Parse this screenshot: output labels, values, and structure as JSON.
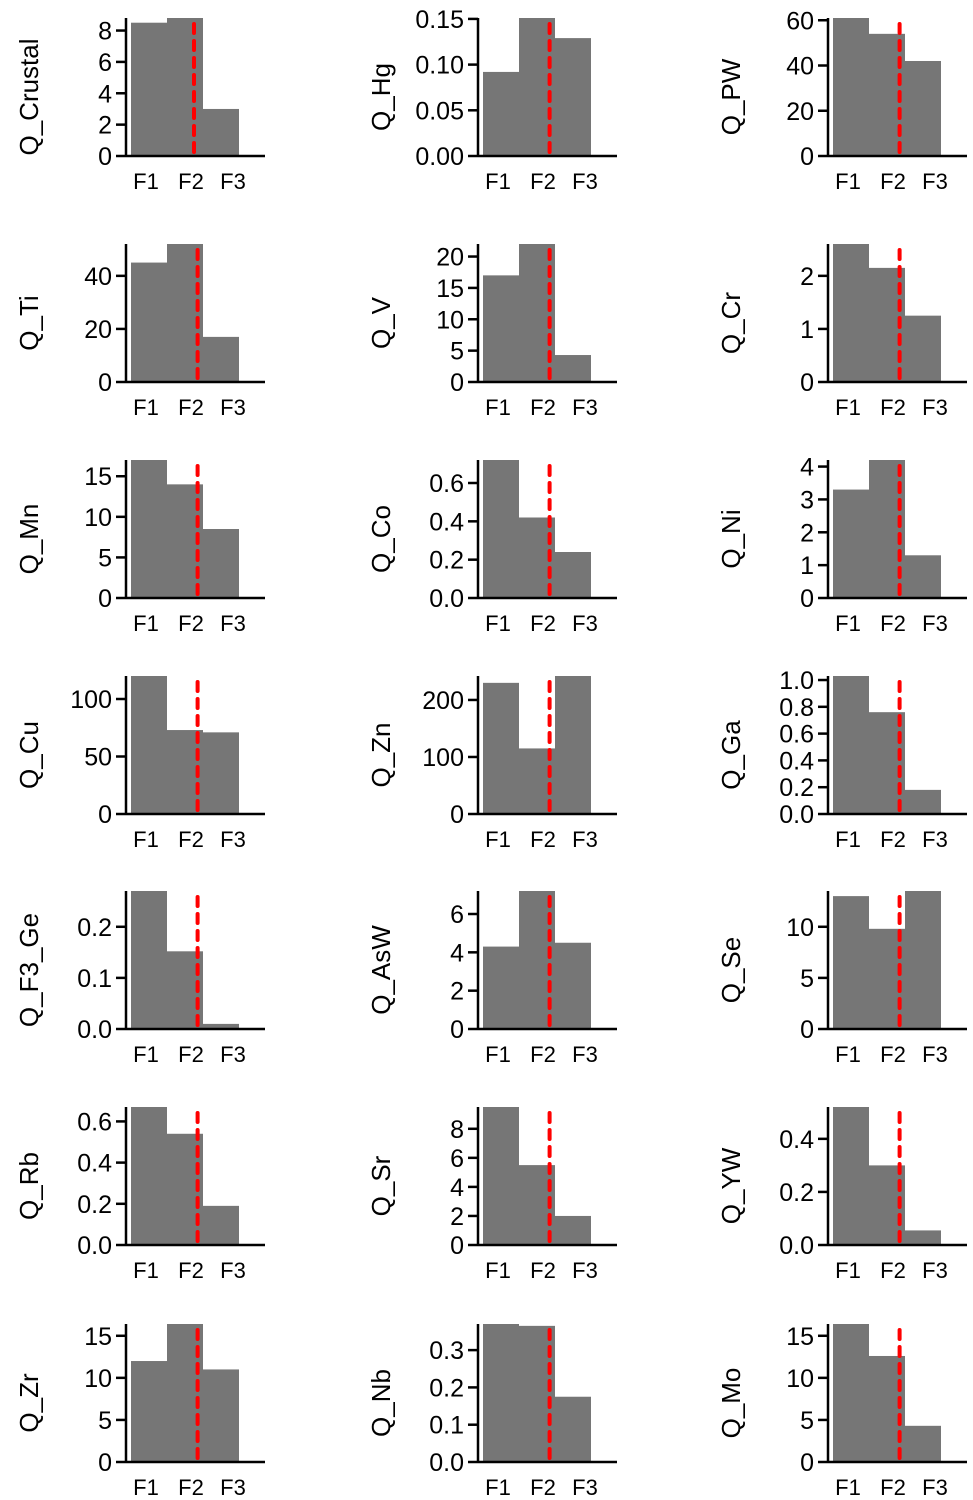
{
  "chart_data": [
    {
      "type": "bar",
      "ylabel": "Q_Crustal",
      "categories": [
        "F1",
        "F2",
        "F3"
      ],
      "values": [
        8.5,
        8.8,
        3.0
      ],
      "yticks": [
        "0",
        "2",
        "4",
        "6",
        "8"
      ],
      "ytick_values": [
        0,
        2,
        4,
        6,
        8
      ],
      "ylim": [
        0,
        8.8
      ],
      "reference_line_x": 2.25,
      "bar_color": "#767676",
      "line_color": "#ff0000"
    },
    {
      "type": "bar",
      "ylabel": "Q_Hg",
      "categories": [
        "F1",
        "F2",
        "F3"
      ],
      "values": [
        0.092,
        0.151,
        0.129
      ],
      "yticks": [
        "0.00",
        "0.05",
        "0.10",
        "0.15"
      ],
      "ytick_values": [
        0,
        0.05,
        0.1,
        0.15
      ],
      "ylim": [
        0,
        0.151
      ],
      "reference_line_x": 2.35,
      "bar_color": "#767676",
      "line_color": "#ff0000"
    },
    {
      "type": "bar",
      "ylabel": "Q_PW",
      "categories": [
        "F1",
        "F2",
        "F3"
      ],
      "values": [
        61,
        54,
        42
      ],
      "yticks": [
        "0",
        "20",
        "40",
        "60"
      ],
      "ytick_values": [
        0,
        20,
        40,
        60
      ],
      "ylim": [
        0,
        61
      ],
      "reference_line_x": 2.35,
      "bar_color": "#767676",
      "line_color": "#ff0000"
    },
    {
      "type": "bar",
      "ylabel": "Q_Ti",
      "categories": [
        "F1",
        "F2",
        "F3"
      ],
      "values": [
        45,
        52,
        17
      ],
      "yticks": [
        "0",
        "20",
        "40"
      ],
      "ytick_values": [
        0,
        20,
        40
      ],
      "ylim": [
        0,
        52
      ],
      "reference_line_x": 2.35,
      "bar_color": "#767676",
      "line_color": "#ff0000"
    },
    {
      "type": "bar",
      "ylabel": "Q_V",
      "categories": [
        "F1",
        "F2",
        "F3"
      ],
      "values": [
        17,
        22,
        4.3
      ],
      "yticks": [
        "0",
        "5",
        "10",
        "15",
        "20"
      ],
      "ytick_values": [
        0,
        5,
        10,
        15,
        20
      ],
      "ylim": [
        0,
        22
      ],
      "reference_line_x": 2.35,
      "bar_color": "#767676",
      "line_color": "#ff0000"
    },
    {
      "type": "bar",
      "ylabel": "Q_Cr",
      "categories": [
        "F1",
        "F2",
        "F3"
      ],
      "values": [
        2.6,
        2.15,
        1.25
      ],
      "yticks": [
        "0",
        "1",
        "2"
      ],
      "ytick_values": [
        0,
        1,
        2
      ],
      "ylim": [
        0,
        2.6
      ],
      "reference_line_x": 2.35,
      "bar_color": "#767676",
      "line_color": "#ff0000"
    },
    {
      "type": "bar",
      "ylabel": "Q_Mn",
      "categories": [
        "F1",
        "F2",
        "F3"
      ],
      "values": [
        17,
        14,
        8.5
      ],
      "yticks": [
        "0",
        "5",
        "10",
        "15"
      ],
      "ytick_values": [
        0,
        5,
        10,
        15
      ],
      "ylim": [
        0,
        17
      ],
      "reference_line_x": 2.35,
      "bar_color": "#767676",
      "line_color": "#ff0000"
    },
    {
      "type": "bar",
      "ylabel": "Q_Co",
      "categories": [
        "F1",
        "F2",
        "F3"
      ],
      "values": [
        0.72,
        0.42,
        0.24
      ],
      "yticks": [
        "0.0",
        "0.2",
        "0.4",
        "0.6"
      ],
      "ytick_values": [
        0,
        0.2,
        0.4,
        0.6
      ],
      "ylim": [
        0,
        0.72
      ],
      "reference_line_x": 2.35,
      "bar_color": "#767676",
      "line_color": "#ff0000"
    },
    {
      "type": "bar",
      "ylabel": "Q_Ni",
      "categories": [
        "F1",
        "F2",
        "F3"
      ],
      "values": [
        3.3,
        4.2,
        1.3
      ],
      "yticks": [
        "0",
        "1",
        "2",
        "3",
        "4"
      ],
      "ytick_values": [
        0,
        1,
        2,
        3,
        4
      ],
      "ylim": [
        0,
        4.2
      ],
      "reference_line_x": 2.35,
      "bar_color": "#767676",
      "line_color": "#ff0000"
    },
    {
      "type": "bar",
      "ylabel": "Q_Cu",
      "categories": [
        "F1",
        "F2",
        "F3"
      ],
      "values": [
        120,
        73,
        71
      ],
      "yticks": [
        "0",
        "50",
        "100"
      ],
      "ytick_values": [
        0,
        50,
        100
      ],
      "ylim": [
        0,
        120
      ],
      "reference_line_x": 2.35,
      "bar_color": "#767676",
      "line_color": "#ff0000"
    },
    {
      "type": "bar",
      "ylabel": "Q_Zn",
      "categories": [
        "F1",
        "F2",
        "F3"
      ],
      "values": [
        230,
        115,
        242
      ],
      "yticks": [
        "0",
        "100",
        "200"
      ],
      "ytick_values": [
        0,
        100,
        200
      ],
      "ylim": [
        0,
        242
      ],
      "reference_line_x": 2.35,
      "bar_color": "#767676",
      "line_color": "#ff0000"
    },
    {
      "type": "bar",
      "ylabel": "Q_Ga",
      "categories": [
        "F1",
        "F2",
        "F3"
      ],
      "values": [
        1.03,
        0.76,
        0.18
      ],
      "yticks": [
        "0.0",
        "0.2",
        "0.4",
        "0.6",
        "0.8",
        "1.0"
      ],
      "ytick_values": [
        0,
        0.2,
        0.4,
        0.6,
        0.8,
        1.0
      ],
      "ylim": [
        0,
        1.03
      ],
      "reference_line_x": 2.35,
      "bar_color": "#767676",
      "line_color": "#ff0000"
    },
    {
      "type": "bar",
      "ylabel": "Q_F3_Ge",
      "categories": [
        "F1",
        "F2",
        "F3"
      ],
      "values": [
        0.27,
        0.152,
        0.01
      ],
      "yticks": [
        "0.0",
        "0.1",
        "0.2"
      ],
      "ytick_values": [
        0,
        0.1,
        0.2
      ],
      "ylim": [
        0,
        0.27
      ],
      "reference_line_x": 2.35,
      "bar_color": "#767676",
      "line_color": "#ff0000"
    },
    {
      "type": "bar",
      "ylabel": "Q_AsW",
      "categories": [
        "F1",
        "F2",
        "F3"
      ],
      "values": [
        4.3,
        7.2,
        4.5
      ],
      "yticks": [
        "0",
        "2",
        "4",
        "6"
      ],
      "ytick_values": [
        0,
        2,
        4,
        6
      ],
      "ylim": [
        0,
        7.2
      ],
      "reference_line_x": 2.35,
      "bar_color": "#767676",
      "line_color": "#ff0000"
    },
    {
      "type": "bar",
      "ylabel": "Q_Se",
      "categories": [
        "F1",
        "F2",
        "F3"
      ],
      "values": [
        13,
        9.8,
        13.5
      ],
      "yticks": [
        "0",
        "5",
        "10"
      ],
      "ytick_values": [
        0,
        5,
        10
      ],
      "ylim": [
        0,
        13.5
      ],
      "reference_line_x": 2.35,
      "bar_color": "#767676",
      "line_color": "#ff0000"
    },
    {
      "type": "bar",
      "ylabel": "Q_Rb",
      "categories": [
        "F1",
        "F2",
        "F3"
      ],
      "values": [
        0.67,
        0.54,
        0.19
      ],
      "yticks": [
        "0.0",
        "0.2",
        "0.4",
        "0.6"
      ],
      "ytick_values": [
        0,
        0.2,
        0.4,
        0.6
      ],
      "ylim": [
        0,
        0.67
      ],
      "reference_line_x": 2.35,
      "bar_color": "#767676",
      "line_color": "#ff0000"
    },
    {
      "type": "bar",
      "ylabel": "Q_Sr",
      "categories": [
        "F1",
        "F2",
        "F3"
      ],
      "values": [
        9.5,
        5.5,
        2.0
      ],
      "yticks": [
        "0",
        "2",
        "4",
        "6",
        "8"
      ],
      "ytick_values": [
        0,
        2,
        4,
        6,
        8
      ],
      "ylim": [
        0,
        9.5
      ],
      "reference_line_x": 2.35,
      "bar_color": "#767676",
      "line_color": "#ff0000"
    },
    {
      "type": "bar",
      "ylabel": "Q_YW",
      "categories": [
        "F1",
        "F2",
        "F3"
      ],
      "values": [
        0.52,
        0.3,
        0.055
      ],
      "yticks": [
        "0.0",
        "0.2",
        "0.4"
      ],
      "ytick_values": [
        0,
        0.2,
        0.4
      ],
      "ylim": [
        0,
        0.52
      ],
      "reference_line_x": 2.35,
      "bar_color": "#767676",
      "line_color": "#ff0000"
    },
    {
      "type": "bar",
      "ylabel": "Q_Zr",
      "categories": [
        "F1",
        "F2",
        "F3"
      ],
      "values": [
        12,
        16.4,
        11
      ],
      "yticks": [
        "0",
        "5",
        "10",
        "15"
      ],
      "ytick_values": [
        0,
        5,
        10,
        15
      ],
      "ylim": [
        0,
        16.4
      ],
      "reference_line_x": 2.35,
      "bar_color": "#767676",
      "line_color": "#ff0000"
    },
    {
      "type": "bar",
      "ylabel": "Q_Nb",
      "categories": [
        "F1",
        "F2",
        "F3"
      ],
      "values": [
        0.37,
        0.365,
        0.175
      ],
      "yticks": [
        "0.0",
        "0.1",
        "0.2",
        "0.3"
      ],
      "ytick_values": [
        0,
        0.1,
        0.2,
        0.3
      ],
      "ylim": [
        0,
        0.37
      ],
      "reference_line_x": 2.35,
      "bar_color": "#767676",
      "line_color": "#ff0000"
    },
    {
      "type": "bar",
      "ylabel": "Q_Mo",
      "categories": [
        "F1",
        "F2",
        "F3"
      ],
      "values": [
        16.4,
        12.6,
        4.3
      ],
      "yticks": [
        "0",
        "5",
        "10",
        "15"
      ],
      "ytick_values": [
        0,
        5,
        10,
        15
      ],
      "ylim": [
        0,
        16.4
      ],
      "reference_line_x": 2.35,
      "bar_color": "#767676",
      "line_color": "#ff0000"
    }
  ]
}
